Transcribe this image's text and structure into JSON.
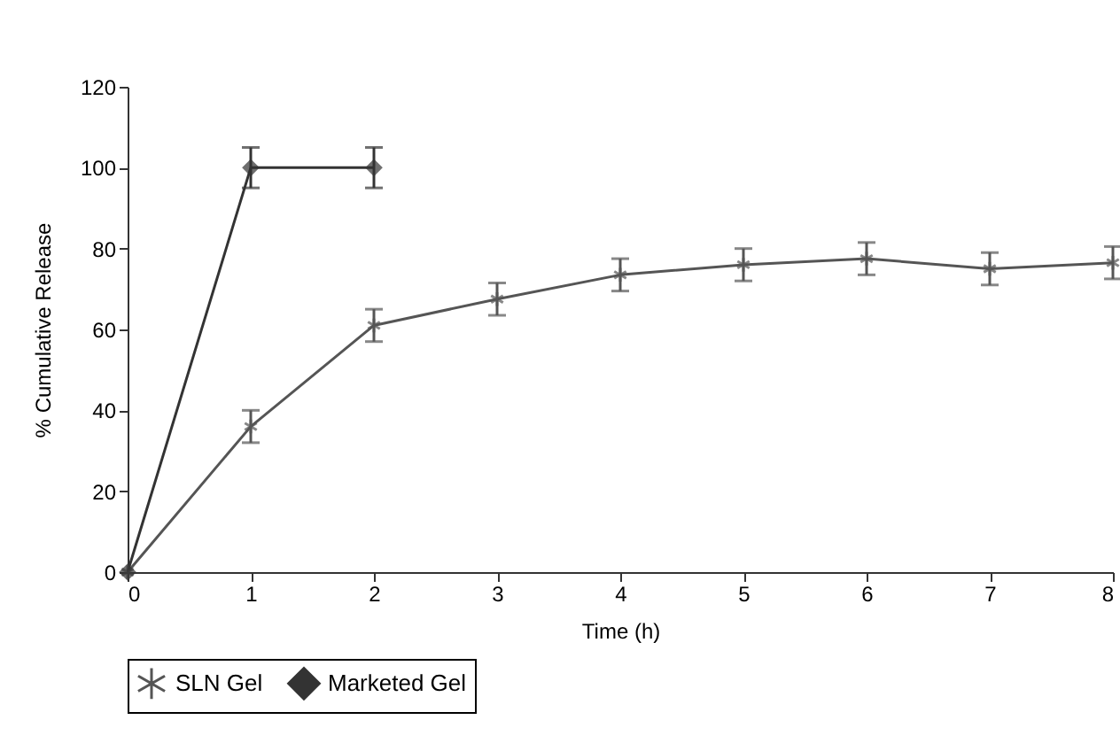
{
  "chart_data": {
    "type": "line",
    "xlabel": "Time (h)",
    "ylabel": "% Cumulative Release",
    "x": [
      0,
      1,
      2,
      3,
      4,
      5,
      6,
      7,
      8
    ],
    "series": [
      {
        "name": "SLN Gel",
        "color": "#555555",
        "marker": "cross",
        "values": [
          0,
          36,
          61,
          67.5,
          73.5,
          76,
          77.5,
          75,
          76.5
        ],
        "errors": [
          null,
          4,
          4,
          4,
          4,
          4,
          4,
          4,
          4
        ]
      },
      {
        "name": "Marketed Gel",
        "color": "#333333",
        "marker": "diamond",
        "x": [
          0,
          1,
          2
        ],
        "values": [
          0,
          100,
          100
        ],
        "errors": [
          null,
          5,
          5
        ]
      }
    ],
    "xlim": [
      0,
      8
    ],
    "xticks": [
      0,
      1,
      2,
      3,
      4,
      5,
      6,
      7,
      8
    ],
    "ylim": [
      0,
      120
    ],
    "yticks": [
      0,
      20,
      40,
      60,
      80,
      100,
      120
    ],
    "grid": false,
    "legend": "bottom",
    "line_style": "solid"
  }
}
